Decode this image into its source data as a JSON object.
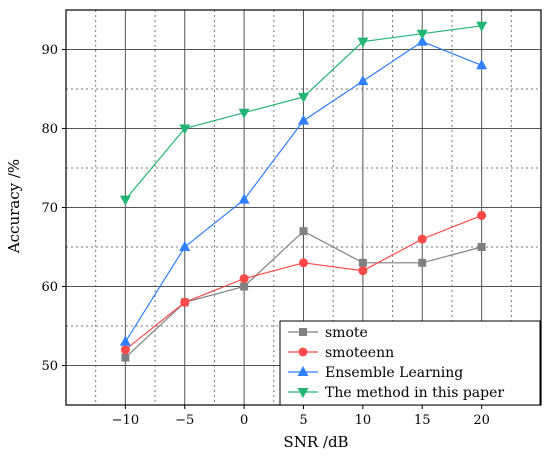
{
  "chart_data": {
    "type": "line",
    "title": "",
    "xlabel": "SNR /dB",
    "ylabel": "Accuracy /%",
    "x": [
      -10,
      -5,
      0,
      5,
      10,
      15,
      20
    ],
    "xlim": [
      -15,
      25
    ],
    "ylim": [
      45,
      95
    ],
    "x_ticks": [
      -10,
      -5,
      0,
      5,
      10,
      15,
      20
    ],
    "y_ticks": [
      50,
      60,
      70,
      80,
      90
    ],
    "grid": true,
    "legend_position": "bottom-right",
    "series": [
      {
        "name": "smote",
        "values": [
          51,
          58,
          60,
          67,
          63,
          63,
          65
        ],
        "color": "#808080",
        "marker": "square"
      },
      {
        "name": "smoteenn",
        "values": [
          52,
          58,
          61,
          63,
          62,
          66,
          69
        ],
        "color": "#ff4a4a",
        "marker": "circle"
      },
      {
        "name": "Ensemble Learning",
        "values": [
          53,
          65,
          71,
          81,
          86,
          91,
          88
        ],
        "color": "#2f7fff",
        "marker": "triangle-up"
      },
      {
        "name": "The method in this paper",
        "values": [
          71,
          80,
          82,
          84,
          91,
          92,
          93
        ],
        "color": "#22b573",
        "marker": "triangle-down"
      }
    ]
  }
}
